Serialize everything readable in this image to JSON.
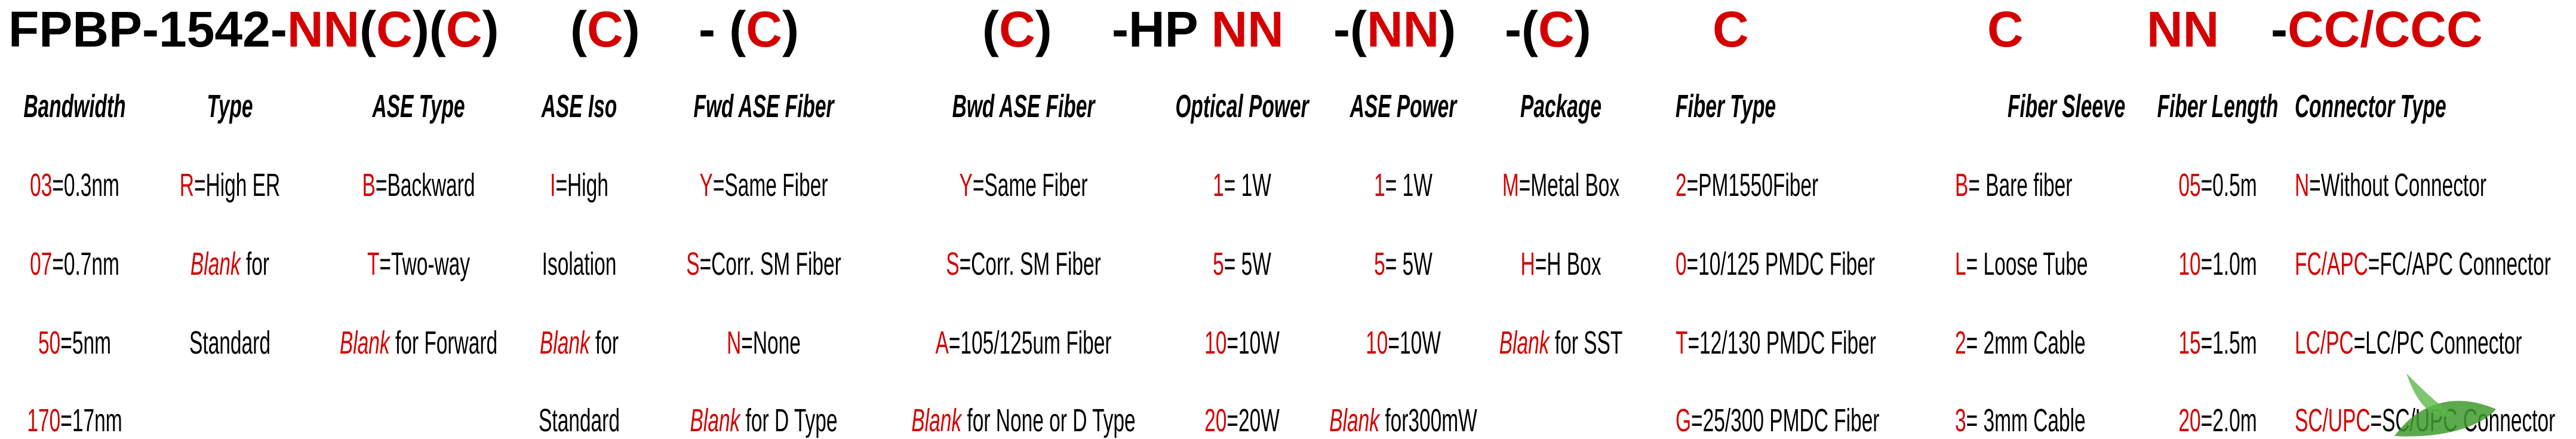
{
  "title_parts": [
    {
      "black": "FPBP-1542-",
      "red": "NN"
    },
    {
      "black": "(",
      "red": "C",
      "black2": ")"
    },
    {
      "black": "(",
      "red": "C",
      "black2": ")"
    },
    {
      "black": "(",
      "red": "C",
      "black2": ")"
    },
    {
      "black": "- (",
      "red": "C",
      "black2": ")"
    },
    {
      "black": "(",
      "red": "C",
      "black2": ")"
    },
    {
      "black": "-HP ",
      "red": "NN"
    },
    {
      "black": "-(",
      "red": "NN",
      "black2": ")"
    },
    {
      "black": "-(",
      "red": "C",
      "black2": ")"
    },
    {
      "black": "",
      "red": "C"
    },
    {
      "black": "",
      "red": "C"
    },
    {
      "black": "",
      "red": "NN"
    },
    {
      "black": "-",
      "red": "CC/CCC"
    }
  ],
  "columns": [
    {
      "header": "Bandwidth",
      "items": [
        {
          "code": "03",
          "text": "=0.3nm"
        },
        {
          "code": "07",
          "text": "=0.7nm"
        },
        {
          "code": "50",
          "text": "=5nm"
        },
        {
          "code": "170",
          "text": "=17nm"
        }
      ]
    },
    {
      "header": "Type",
      "items": [
        {
          "code": "R",
          "text": "=High ER"
        },
        {
          "code": "Blank",
          "text": " for",
          "italic": true
        },
        {
          "code": "",
          "text": "Standard"
        }
      ]
    },
    {
      "header": "ASE Type",
      "items": [
        {
          "code": "B",
          "text": "=Backward"
        },
        {
          "code": "T",
          "text": "=Two-way"
        },
        {
          "code": "Blank",
          "text": " for Forward",
          "italic": true
        }
      ]
    },
    {
      "header": "ASE Iso",
      "items": [
        {
          "code": "I",
          "text": "=High"
        },
        {
          "code": "",
          "text": "Isolation"
        },
        {
          "code": "Blank",
          "text": " for",
          "italic": true
        },
        {
          "code": "",
          "text": "Standard"
        }
      ]
    },
    {
      "header": "Fwd ASE Fiber",
      "items": [
        {
          "code": "Y",
          "text": "=Same Fiber"
        },
        {
          "code": "S",
          "text": "=Corr. SM Fiber"
        },
        {
          "code": "N",
          "text": "=None"
        },
        {
          "code": "Blank",
          "text": " for D Type",
          "italic": true
        }
      ]
    },
    {
      "header": "Bwd ASE Fiber",
      "items": [
        {
          "code": "Y",
          "text": "=Same Fiber"
        },
        {
          "code": "S",
          "text": "=Corr. SM Fiber"
        },
        {
          "code": "A",
          "text": "=105/125um Fiber"
        },
        {
          "code": "Blank",
          "text": " for None or D Type",
          "italic": true
        }
      ]
    },
    {
      "header": "Optical Power",
      "items": [
        {
          "code": "1",
          "text": "= 1W"
        },
        {
          "code": "5",
          "text": "= 5W"
        },
        {
          "code": "10",
          "text": "=10W"
        },
        {
          "code": "20",
          "text": "=20W"
        }
      ]
    },
    {
      "header": "ASE Power",
      "items": [
        {
          "code": "1",
          "text": "= 1W"
        },
        {
          "code": "5",
          "text": "= 5W"
        },
        {
          "code": "10",
          "text": "=10W"
        },
        {
          "code": "Blank",
          "text": " for300mW",
          "italic": true
        }
      ]
    },
    {
      "header": "Package",
      "items": [
        {
          "code": "M",
          "text": "=Metal Box"
        },
        {
          "code": "H",
          "text": "=H Box"
        },
        {
          "code": "Blank",
          "text": " for SST",
          "italic": true
        }
      ]
    },
    {
      "header": "Fiber Type",
      "items": [
        {
          "code": "2",
          "text": "=PM1550Fiber"
        },
        {
          "code": "0",
          "text": "=10/125 PMDC Fiber"
        },
        {
          "code": "T",
          "text": "=12/130 PMDC Fiber"
        },
        {
          "code": "G",
          "text": "=25/300 PMDC Fiber"
        }
      ]
    },
    {
      "header": "Fiber Sleeve",
      "items": [
        {
          "code": "B",
          "text": "= Bare fiber"
        },
        {
          "code": "L",
          "text": "= Loose Tube"
        },
        {
          "code": "2",
          "text": "= 2mm Cable"
        },
        {
          "code": "3",
          "text": "= 3mm Cable"
        }
      ]
    },
    {
      "header": "Fiber Length",
      "items": [
        {
          "code": "05",
          "text": "=0.5m"
        },
        {
          "code": "10",
          "text": "=1.0m"
        },
        {
          "code": "15",
          "text": "=1.5m"
        },
        {
          "code": "20",
          "text": "=2.0m"
        }
      ]
    },
    {
      "header": "Connector Type",
      "items": [
        {
          "code": "N",
          "text": "=Without Connector"
        },
        {
          "code": "FC/APC",
          "text": "=FC/APC Connector"
        },
        {
          "code": "LC/PC",
          "text": "=LC/PC Connector"
        },
        {
          "code": "SC/UPC",
          "text": "=SC/UPC Connector"
        }
      ]
    }
  ],
  "colors": {
    "code": "#d40000",
    "text": "#000000",
    "leaf": "#3f9a2f"
  }
}
